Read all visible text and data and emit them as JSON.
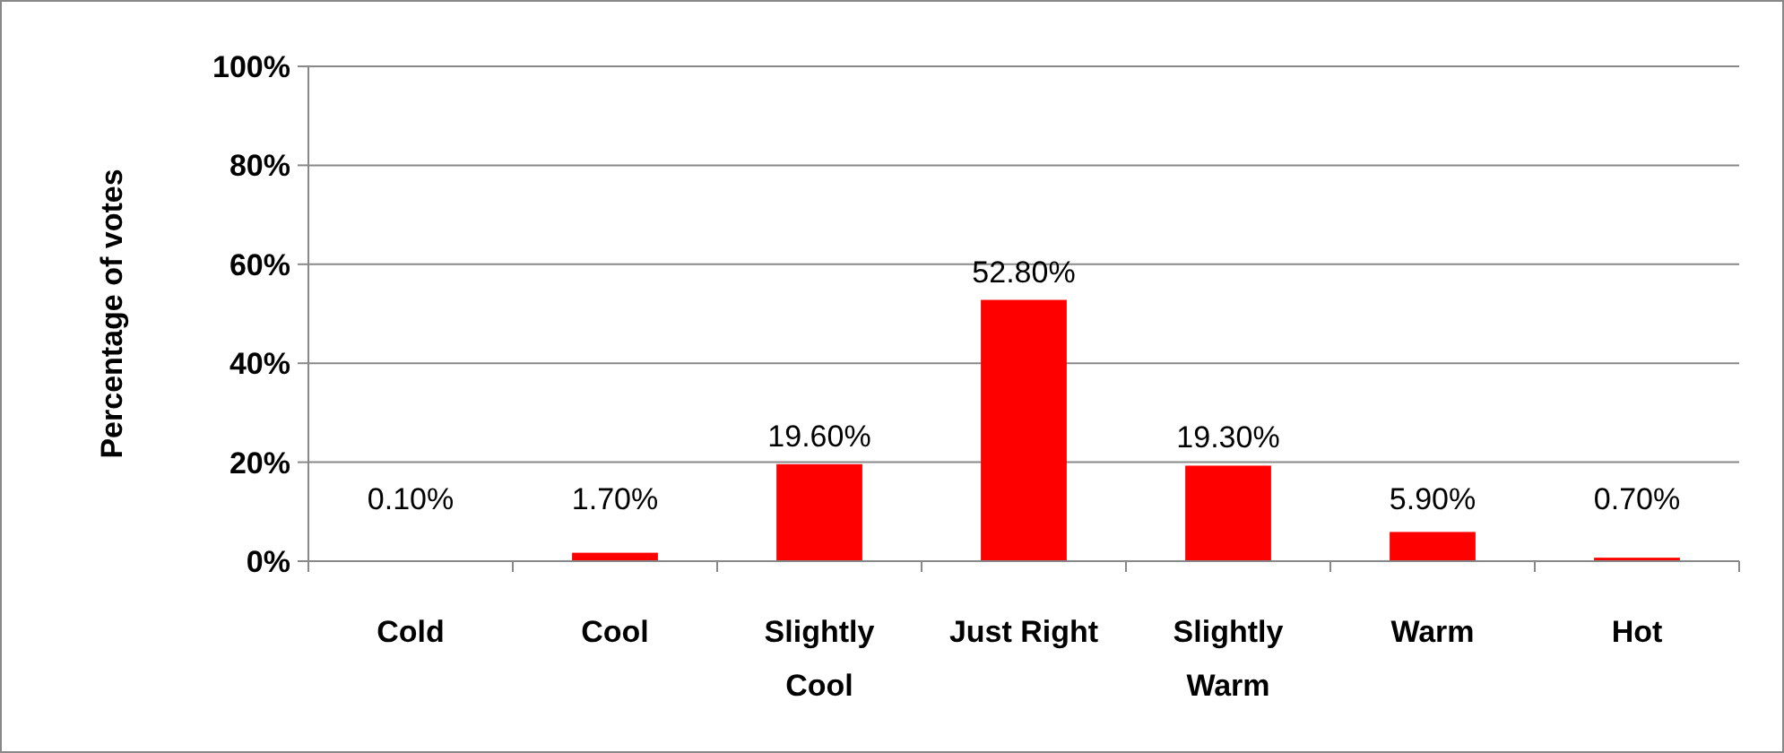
{
  "chart_data": {
    "type": "bar",
    "ylabel": "Percentage of votes",
    "categories": [
      "Cold",
      "Cool",
      "Slightly Cool",
      "Just Right",
      "Slightly Warm",
      "Warm",
      "Hot"
    ],
    "values": [
      0.1,
      1.7,
      19.6,
      52.8,
      19.3,
      5.9,
      0.7
    ],
    "value_labels": [
      "0.10%",
      "1.70%",
      "19.60%",
      "52.80%",
      "19.30%",
      "5.90%",
      "0.70%"
    ],
    "color": "#ff0000",
    "ylim": [
      0,
      100
    ],
    "yticks": [
      {
        "value": 0,
        "label": "0%"
      },
      {
        "value": 20,
        "label": "20%"
      },
      {
        "value": 40,
        "label": "40%"
      },
      {
        "value": 60,
        "label": "60%"
      },
      {
        "value": 80,
        "label": "80%"
      },
      {
        "value": 100,
        "label": "100%"
      }
    ],
    "grid": "y"
  }
}
